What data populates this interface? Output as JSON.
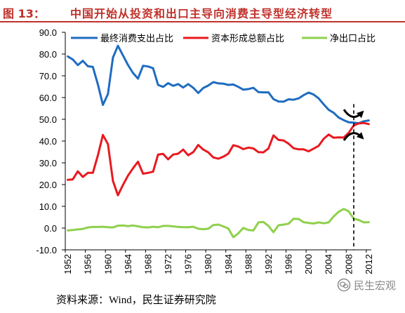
{
  "header": {
    "figure_label": "图 13：",
    "title": "中国开始从投资和出口主导向消费主导型经济转型"
  },
  "chart_data": {
    "type": "line",
    "title": "",
    "xlabel": "",
    "ylabel": "",
    "x": [
      1952,
      1953,
      1954,
      1955,
      1956,
      1957,
      1958,
      1959,
      1960,
      1961,
      1962,
      1963,
      1964,
      1965,
      1966,
      1967,
      1968,
      1969,
      1970,
      1971,
      1972,
      1973,
      1974,
      1975,
      1976,
      1977,
      1978,
      1979,
      1980,
      1981,
      1982,
      1983,
      1984,
      1985,
      1986,
      1987,
      1988,
      1989,
      1990,
      1991,
      1992,
      1993,
      1994,
      1995,
      1996,
      1997,
      1998,
      1999,
      2000,
      2001,
      2002,
      2003,
      2004,
      2005,
      2006,
      2007,
      2008,
      2009,
      2010,
      2011,
      2012
    ],
    "xtick_labels": [
      "1952",
      "1956",
      "1960",
      "1964",
      "1968",
      "1972",
      "1976",
      "1980",
      "1984",
      "1988",
      "1992",
      "1996",
      "2000",
      "2004",
      "2008",
      "2012"
    ],
    "ytick_labels": [
      "90.0",
      "80.0",
      "70.0",
      "60.0",
      "50.0",
      "40.0",
      "30.0",
      "20.0",
      "10.0",
      "0.0",
      "-10.0"
    ],
    "ylim": [
      -10,
      90
    ],
    "grid": false,
    "legend": "top",
    "series": [
      {
        "name": "最终消费支出占比",
        "color": "#1f6cc0",
        "values": [
          78.9,
          77.5,
          74.9,
          76.9,
          74.4,
          74.1,
          66.0,
          56.6,
          61.6,
          78.4,
          83.8,
          79.4,
          75.0,
          71.3,
          68.7,
          74.6,
          74.3,
          73.5,
          65.8,
          64.9,
          66.6,
          65.4,
          66.2,
          64.6,
          66.2,
          64.5,
          62.1,
          64.4,
          65.5,
          67.1,
          66.5,
          66.4,
          65.8,
          66.0,
          64.9,
          63.6,
          63.9,
          64.5,
          62.5,
          62.4,
          62.4,
          59.3,
          58.2,
          58.1,
          59.2,
          59.0,
          59.6,
          61.1,
          62.3,
          61.4,
          59.6,
          56.9,
          54.4,
          53.0,
          50.8,
          49.6,
          48.6,
          48.5,
          48.2,
          49.1,
          49.5
        ]
      },
      {
        "name": "资本形成总额占比",
        "color": "#e8191f",
        "values": [
          22.2,
          22.4,
          26.1,
          23.5,
          25.4,
          25.4,
          33.5,
          42.8,
          38.6,
          21.7,
          15.1,
          19.8,
          24.1,
          27.5,
          30.5,
          25.0,
          25.4,
          25.9,
          33.8,
          34.1,
          31.6,
          33.8,
          34.2,
          36.1,
          33.5,
          34.9,
          38.2,
          36.1,
          34.8,
          32.5,
          31.9,
          32.8,
          34.2,
          38.1,
          37.5,
          36.3,
          37.0,
          36.6,
          34.9,
          34.8,
          36.6,
          42.6,
          40.5,
          40.3,
          38.8,
          36.7,
          36.2,
          36.2,
          35.3,
          36.5,
          37.8,
          41.0,
          43.0,
          41.5,
          41.7,
          41.6,
          43.8,
          47.2,
          48.1,
          48.3,
          47.8
        ]
      },
      {
        "name": "净出口占比",
        "color": "#8fd04d",
        "values": [
          -1.1,
          -0.9,
          -0.6,
          -0.4,
          0.3,
          0.5,
          0.5,
          0.6,
          0.4,
          0.3,
          1.1,
          1.2,
          0.9,
          1.2,
          0.8,
          0.4,
          0.3,
          0.6,
          0.4,
          1.0,
          1.0,
          0.8,
          0.5,
          0.4,
          0.4,
          0.6,
          -0.3,
          -0.5,
          -0.3,
          1.4,
          1.6,
          0.8,
          -0.2,
          -4.2,
          -2.4,
          0.1,
          -0.9,
          -1.1,
          2.6,
          2.8,
          1.0,
          -1.9,
          1.3,
          1.6,
          2.0,
          4.3,
          4.2,
          2.7,
          2.4,
          2.1,
          2.6,
          2.2,
          2.6,
          5.4,
          7.5,
          8.8,
          7.7,
          4.3,
          3.7,
          2.6,
          2.7
        ]
      }
    ],
    "reference_line": {
      "x": 2009,
      "style": "dashed",
      "icon": "crossing-arrows-icon"
    }
  },
  "source": "资料来源：Wind，民生证券研究院",
  "watermark": {
    "text": "民生宏观",
    "icon": "wechat-logo-icon"
  },
  "colors": {
    "title": "#c0312b",
    "axis": "#000000",
    "watermark": "#8a8a8a"
  }
}
